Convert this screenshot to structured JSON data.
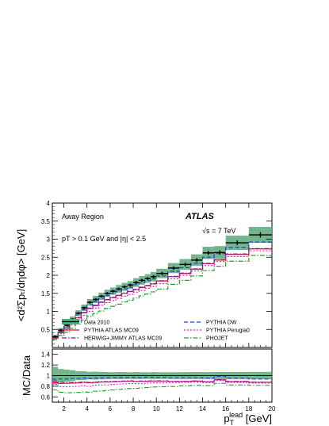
{
  "chart_data": [
    {
      "type": "line",
      "panel": "main",
      "ylabel": "<d²Σpₜ/dηdφ> [GeV]",
      "xlim": [
        1,
        20
      ],
      "ylim": [
        0,
        4
      ],
      "yticks": [
        0.5,
        1,
        1.5,
        2,
        2.5,
        3,
        3.5,
        4
      ],
      "annotations": {
        "region": "Away Region",
        "experiment": "ATLAS",
        "energy": "√s = 7 TeV",
        "cuts": "pT > 0.1 GeV and |η| < 2.5"
      },
      "legend_placement": "bottom",
      "x_edges": [
        1,
        1.5,
        2,
        2.5,
        3,
        3.5,
        4,
        4.5,
        5,
        5.5,
        6,
        6.5,
        7,
        7.5,
        8,
        8.5,
        9,
        9.5,
        10,
        11,
        12,
        13,
        14,
        15,
        16,
        18,
        20
      ],
      "series": [
        {
          "name": "Data 2010",
          "style": "data",
          "color": "#000000",
          "band_color": "#5aa87a",
          "values": [
            0.3,
            0.48,
            0.62,
            0.78,
            0.95,
            1.1,
            1.25,
            1.33,
            1.42,
            1.5,
            1.56,
            1.62,
            1.68,
            1.73,
            1.8,
            1.86,
            1.91,
            1.96,
            2.05,
            2.2,
            2.3,
            2.42,
            2.62,
            2.63,
            2.9,
            3.12
          ],
          "band_half_width": [
            0.05,
            0.06,
            0.07,
            0.08,
            0.08,
            0.09,
            0.09,
            0.1,
            0.1,
            0.1,
            0.1,
            0.11,
            0.11,
            0.11,
            0.12,
            0.12,
            0.12,
            0.13,
            0.13,
            0.14,
            0.15,
            0.16,
            0.17,
            0.18,
            0.2,
            0.22
          ]
        },
        {
          "name": "PYTHIA DW",
          "style": "dashed",
          "color": "#1d3fd9",
          "values": [
            0.28,
            0.45,
            0.58,
            0.74,
            0.9,
            1.05,
            1.18,
            1.27,
            1.36,
            1.44,
            1.5,
            1.56,
            1.62,
            1.67,
            1.74,
            1.79,
            1.85,
            1.9,
            1.98,
            2.11,
            2.21,
            2.33,
            2.5,
            2.6,
            2.77,
            2.92
          ]
        },
        {
          "name": "PYTHIA ATLAS MC09",
          "style": "solid",
          "color": "#e0102c",
          "values": [
            0.26,
            0.41,
            0.53,
            0.67,
            0.82,
            0.96,
            1.08,
            1.16,
            1.25,
            1.32,
            1.38,
            1.44,
            1.5,
            1.55,
            1.6,
            1.66,
            1.71,
            1.76,
            1.84,
            1.96,
            2.05,
            2.17,
            2.32,
            2.42,
            2.58,
            2.73
          ]
        },
        {
          "name": "PYTHIA Perugia0",
          "style": "dotted",
          "color": "#e020c8",
          "values": [
            0.25,
            0.38,
            0.49,
            0.62,
            0.76,
            0.89,
            1.0,
            1.09,
            1.17,
            1.24,
            1.3,
            1.36,
            1.42,
            1.47,
            1.53,
            1.58,
            1.64,
            1.69,
            1.77,
            1.9,
            2.0,
            2.12,
            2.27,
            2.38,
            2.52,
            2.68
          ]
        },
        {
          "name": "HERWIG+JIMMY ATLAS MC09",
          "style": "dashdot",
          "color": "#7a1c96",
          "values": [
            0.27,
            0.42,
            0.54,
            0.68,
            0.83,
            0.97,
            1.09,
            1.17,
            1.26,
            1.33,
            1.39,
            1.45,
            1.51,
            1.56,
            1.61,
            1.67,
            1.72,
            1.77,
            1.85,
            1.97,
            2.06,
            2.18,
            2.33,
            2.43,
            2.59,
            2.74
          ]
        },
        {
          "name": "PHOJET",
          "style": "dashdot",
          "color": "#22a02a",
          "values": [
            0.22,
            0.33,
            0.42,
            0.53,
            0.65,
            0.76,
            0.86,
            0.94,
            1.01,
            1.08,
            1.14,
            1.2,
            1.26,
            1.31,
            1.37,
            1.43,
            1.48,
            1.54,
            1.62,
            1.75,
            1.86,
            1.98,
            2.13,
            2.25,
            2.39,
            2.55
          ]
        }
      ]
    },
    {
      "type": "line",
      "panel": "ratio",
      "xlabel": "p_T^lead [GeV]",
      "ylabel": "MC/Data",
      "xlim": [
        1,
        20
      ],
      "ylim": [
        0.5,
        1.5
      ],
      "xticks": [
        2,
        4,
        6,
        8,
        10,
        12,
        14,
        16,
        18,
        20
      ],
      "yticks": [
        0.6,
        0.8,
        1,
        1.2,
        1.4
      ],
      "reference_line": 1
    }
  ]
}
